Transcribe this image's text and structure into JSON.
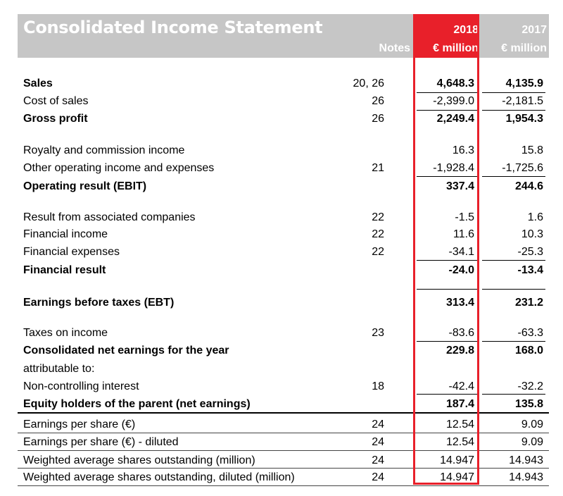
{
  "header": {
    "title": "Consolidated Income Statement",
    "notes": "Notes",
    "year_2018": "2018",
    "year_2017": "2017",
    "unit_2018": "€ million",
    "unit_2017": "€ million"
  },
  "rows": [
    {
      "label": "Sales",
      "note": "20, 26",
      "v2018": "4,648.3",
      "v2017": "4,135.9"
    },
    {
      "label": "Cost of sales",
      "note": "26",
      "v2018": "-2,399.0",
      "v2017": "-2,181.5"
    },
    {
      "label": "Gross profit",
      "note": "26",
      "v2018": "2,249.4",
      "v2017": "1,954.3"
    },
    {
      "label": "Royalty and commission income",
      "note": "",
      "v2018": "16.3",
      "v2017": "15.8"
    },
    {
      "label": "Other operating income and expenses",
      "note": "21",
      "v2018": "-1,928.4",
      "v2017": "-1,725.6"
    },
    {
      "label": "Operating result (EBIT)",
      "note": "",
      "v2018": "337.4",
      "v2017": "244.6"
    },
    {
      "label": "Result from associated companies",
      "note": "22",
      "v2018": "-1.5",
      "v2017": "1.6"
    },
    {
      "label": "Financial income",
      "note": "22",
      "v2018": "11.6",
      "v2017": "10.3"
    },
    {
      "label": "Financial expenses",
      "note": "22",
      "v2018": "-34.1",
      "v2017": "-25.3"
    },
    {
      "label": "Financial result",
      "note": "",
      "v2018": "-24.0",
      "v2017": "-13.4"
    },
    {
      "label": "Earnings before taxes (EBT)",
      "note": "",
      "v2018": "313.4",
      "v2017": "231.2"
    },
    {
      "label": "Taxes on income",
      "note": "23",
      "v2018": "-83.6",
      "v2017": "-63.3"
    },
    {
      "label": "Consolidated net earnings for the year",
      "note": "",
      "v2018": "229.8",
      "v2017": "168.0"
    },
    {
      "label": "attributable to:",
      "note": "",
      "v2018": "",
      "v2017": ""
    },
    {
      "label": "Non-controlling interest",
      "note": "18",
      "v2018": "-42.4",
      "v2017": "-32.2"
    },
    {
      "label": "Equity holders of the parent (net earnings)",
      "note": "",
      "v2018": "187.4",
      "v2017": "135.8"
    },
    {
      "label": "Earnings per share (€)",
      "note": "24",
      "v2018": "12.54",
      "v2017": "9.09"
    },
    {
      "label": "Earnings per share (€) - diluted",
      "note": "24",
      "v2018": "12.54",
      "v2017": "9.09"
    },
    {
      "label": "Weighted average shares outstanding (million)",
      "note": "24",
      "v2018": "14.947",
      "v2017": "14.943"
    },
    {
      "label": "Weighted average shares outstanding, diluted (million)",
      "note": "24",
      "v2018": "14.947",
      "v2017": "14.943"
    }
  ],
  "colors": {
    "highlight": "#e8202a",
    "header_bg": "#c6c6c6"
  }
}
